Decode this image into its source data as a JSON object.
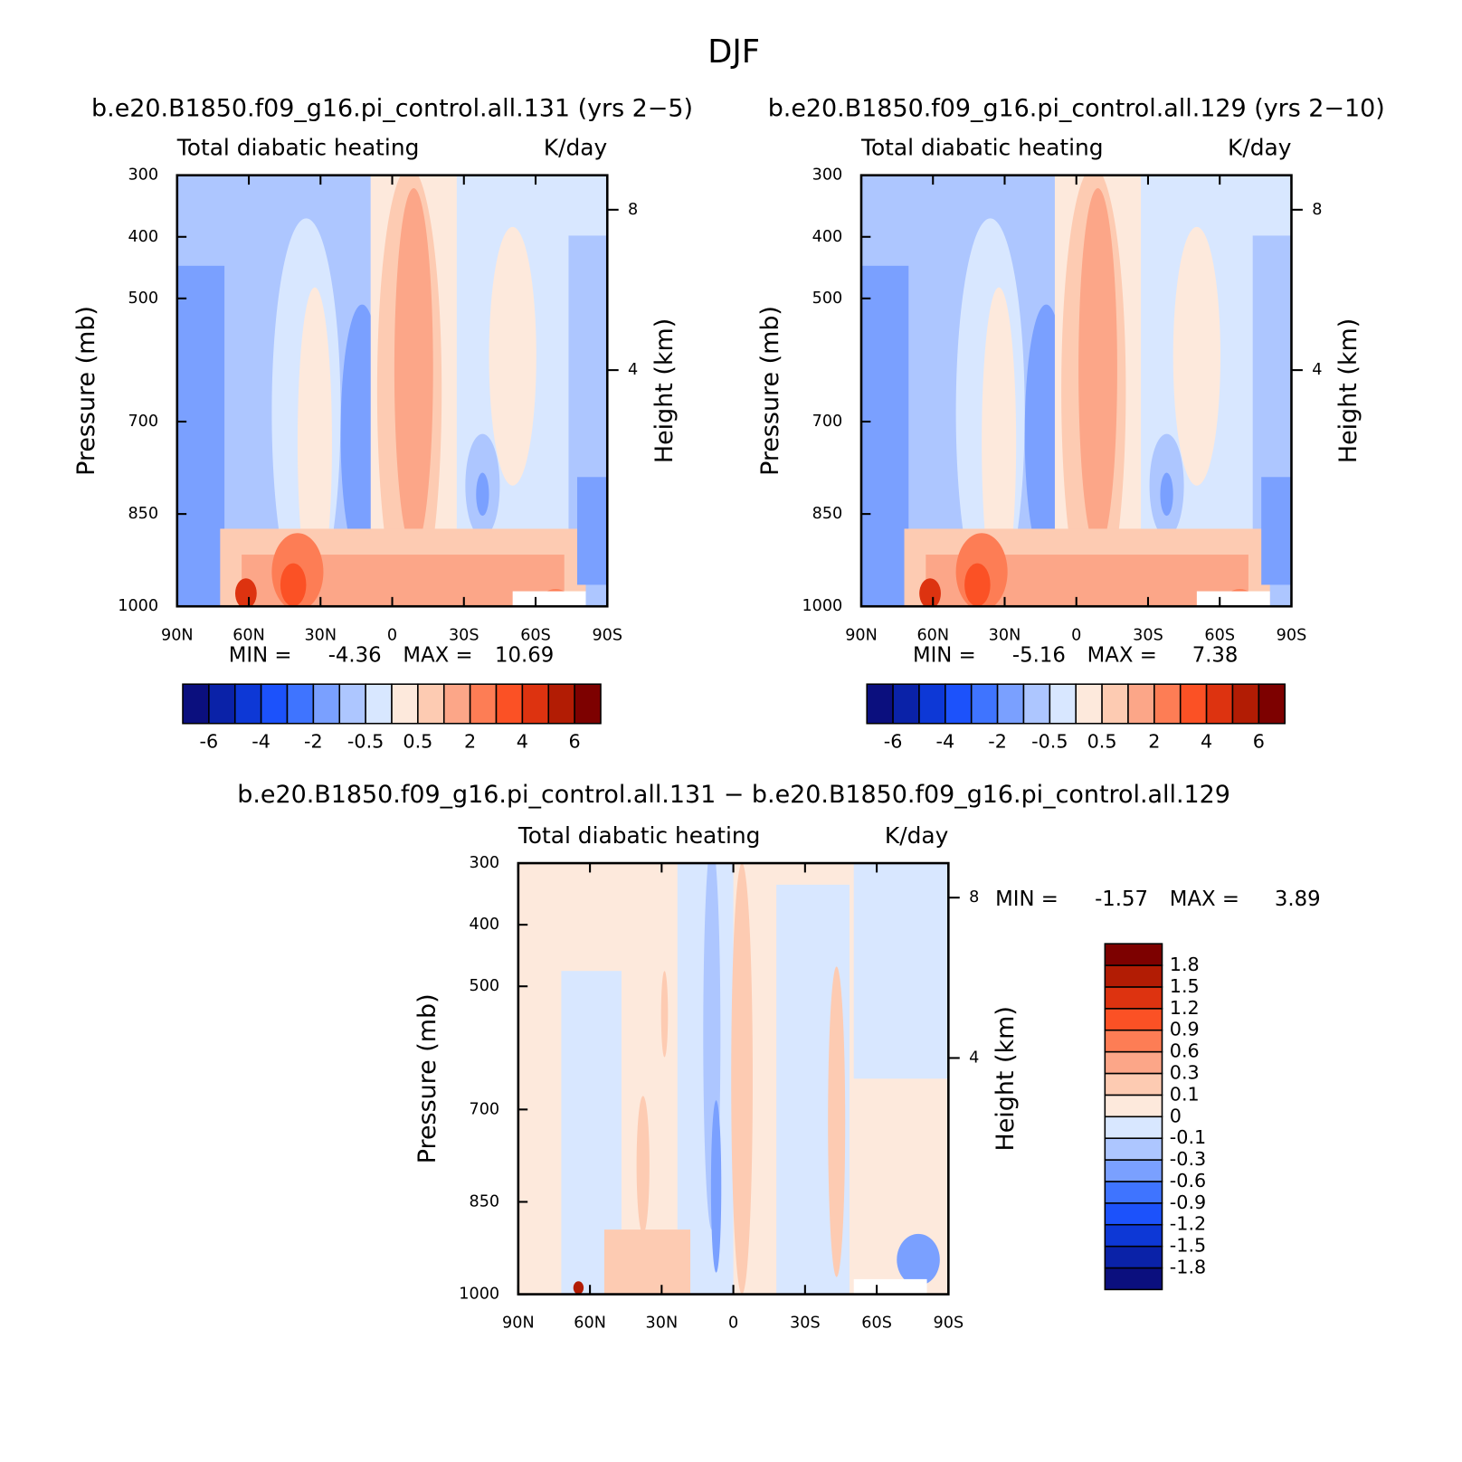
{
  "title": "DJF",
  "chart_data": [
    {
      "type": "contour",
      "title": "b.e20.B1850.f09_g16.pi_control.all.131 (yrs 2−5)",
      "subtitle": "Total diabatic heating",
      "units": "K/day",
      "ylabel": "Pressure (mb)",
      "y2label": "Height (km)",
      "xlim": [
        90,
        -90
      ],
      "xticks": [
        {
          "value": 90,
          "label": "90N"
        },
        {
          "value": 60,
          "label": "60N"
        },
        {
          "value": 30,
          "label": "30N"
        },
        0,
        {
          "value": -30,
          "label": "30S"
        },
        {
          "value": -60,
          "label": "60S"
        },
        {
          "value": -90,
          "label": "90S"
        }
      ],
      "ylim": [
        1000,
        300
      ],
      "yticks": [
        300,
        400,
        500,
        700,
        850,
        1000
      ],
      "y2ticks": [
        4,
        8
      ],
      "min_label": "MIN =",
      "min": -4.36,
      "max_label": "MAX =",
      "max": 10.69,
      "colorbar": {
        "orientation": "horizontal",
        "colors": [
          "#0b0f7e",
          "#0a22a8",
          "#0d38d6",
          "#1c52fb",
          "#3f74ff",
          "#7aa0ff",
          "#adc6ff",
          "#d8e7ff",
          "#fde9dc",
          "#fdcbb2",
          "#fca688",
          "#fd7d55",
          "#fb5125",
          "#dd3310",
          "#b21c04",
          "#7d0100"
        ],
        "labels": [
          -6,
          -4,
          -2,
          -0.5,
          0.5,
          2,
          4,
          6
        ]
      }
    },
    {
      "type": "contour",
      "title": "b.e20.B1850.f09_g16.pi_control.all.129 (yrs 2−10)",
      "subtitle": "Total diabatic heating",
      "units": "K/day",
      "ylabel": "Pressure (mb)",
      "y2label": "Height (km)",
      "xlim": [
        90,
        -90
      ],
      "xticks": [
        {
          "value": 90,
          "label": "90N"
        },
        {
          "value": 60,
          "label": "60N"
        },
        {
          "value": 30,
          "label": "30N"
        },
        0,
        {
          "value": -30,
          "label": "30S"
        },
        {
          "value": -60,
          "label": "60S"
        },
        {
          "value": -90,
          "label": "90S"
        }
      ],
      "ylim": [
        1000,
        300
      ],
      "yticks": [
        300,
        400,
        500,
        700,
        850,
        1000
      ],
      "y2ticks": [
        4,
        8
      ],
      "min_label": "MIN =",
      "min": -5.16,
      "max_label": "MAX =",
      "max": 7.38,
      "colorbar": {
        "orientation": "horizontal",
        "colors": [
          "#0b0f7e",
          "#0a22a8",
          "#0d38d6",
          "#1c52fb",
          "#3f74ff",
          "#7aa0ff",
          "#adc6ff",
          "#d8e7ff",
          "#fde9dc",
          "#fdcbb2",
          "#fca688",
          "#fd7d55",
          "#fb5125",
          "#dd3310",
          "#b21c04",
          "#7d0100"
        ],
        "labels": [
          -6,
          -4,
          -2,
          -0.5,
          0.5,
          2,
          4,
          6
        ]
      }
    },
    {
      "type": "contour",
      "title": "b.e20.B1850.f09_g16.pi_control.all.131 − b.e20.B1850.f09_g16.pi_control.all.129",
      "subtitle": "Total diabatic heating",
      "units": "K/day",
      "ylabel": "Pressure (mb)",
      "y2label": "Height (km)",
      "xlim": [
        90,
        -90
      ],
      "xticks": [
        {
          "value": 90,
          "label": "90N"
        },
        {
          "value": 60,
          "label": "60N"
        },
        {
          "value": 30,
          "label": "30N"
        },
        0,
        {
          "value": -30,
          "label": "30S"
        },
        {
          "value": -60,
          "label": "60S"
        },
        {
          "value": -90,
          "label": "90S"
        }
      ],
      "ylim": [
        1000,
        300
      ],
      "yticks": [
        300,
        400,
        500,
        700,
        850,
        1000
      ],
      "y2ticks": [
        4,
        8
      ],
      "min_label": "MIN =",
      "min": -1.57,
      "max_label": "MAX =",
      "max": 3.89,
      "colorbar": {
        "orientation": "vertical",
        "colors": [
          "#0b0f7e",
          "#0a22a8",
          "#0d38d6",
          "#1c52fb",
          "#3f74ff",
          "#7aa0ff",
          "#adc6ff",
          "#d8e7ff",
          "#fde9dc",
          "#fdcbb2",
          "#fca688",
          "#fd7d55",
          "#fb5125",
          "#dd3310",
          "#b21c04",
          "#7d0100"
        ],
        "labels": [
          1.8,
          1.5,
          1.2,
          0.9,
          0.6,
          0.3,
          0.1,
          0,
          -0.1,
          -0.3,
          -0.6,
          -0.9,
          -1.2,
          -1.5,
          -1.8
        ]
      }
    }
  ]
}
